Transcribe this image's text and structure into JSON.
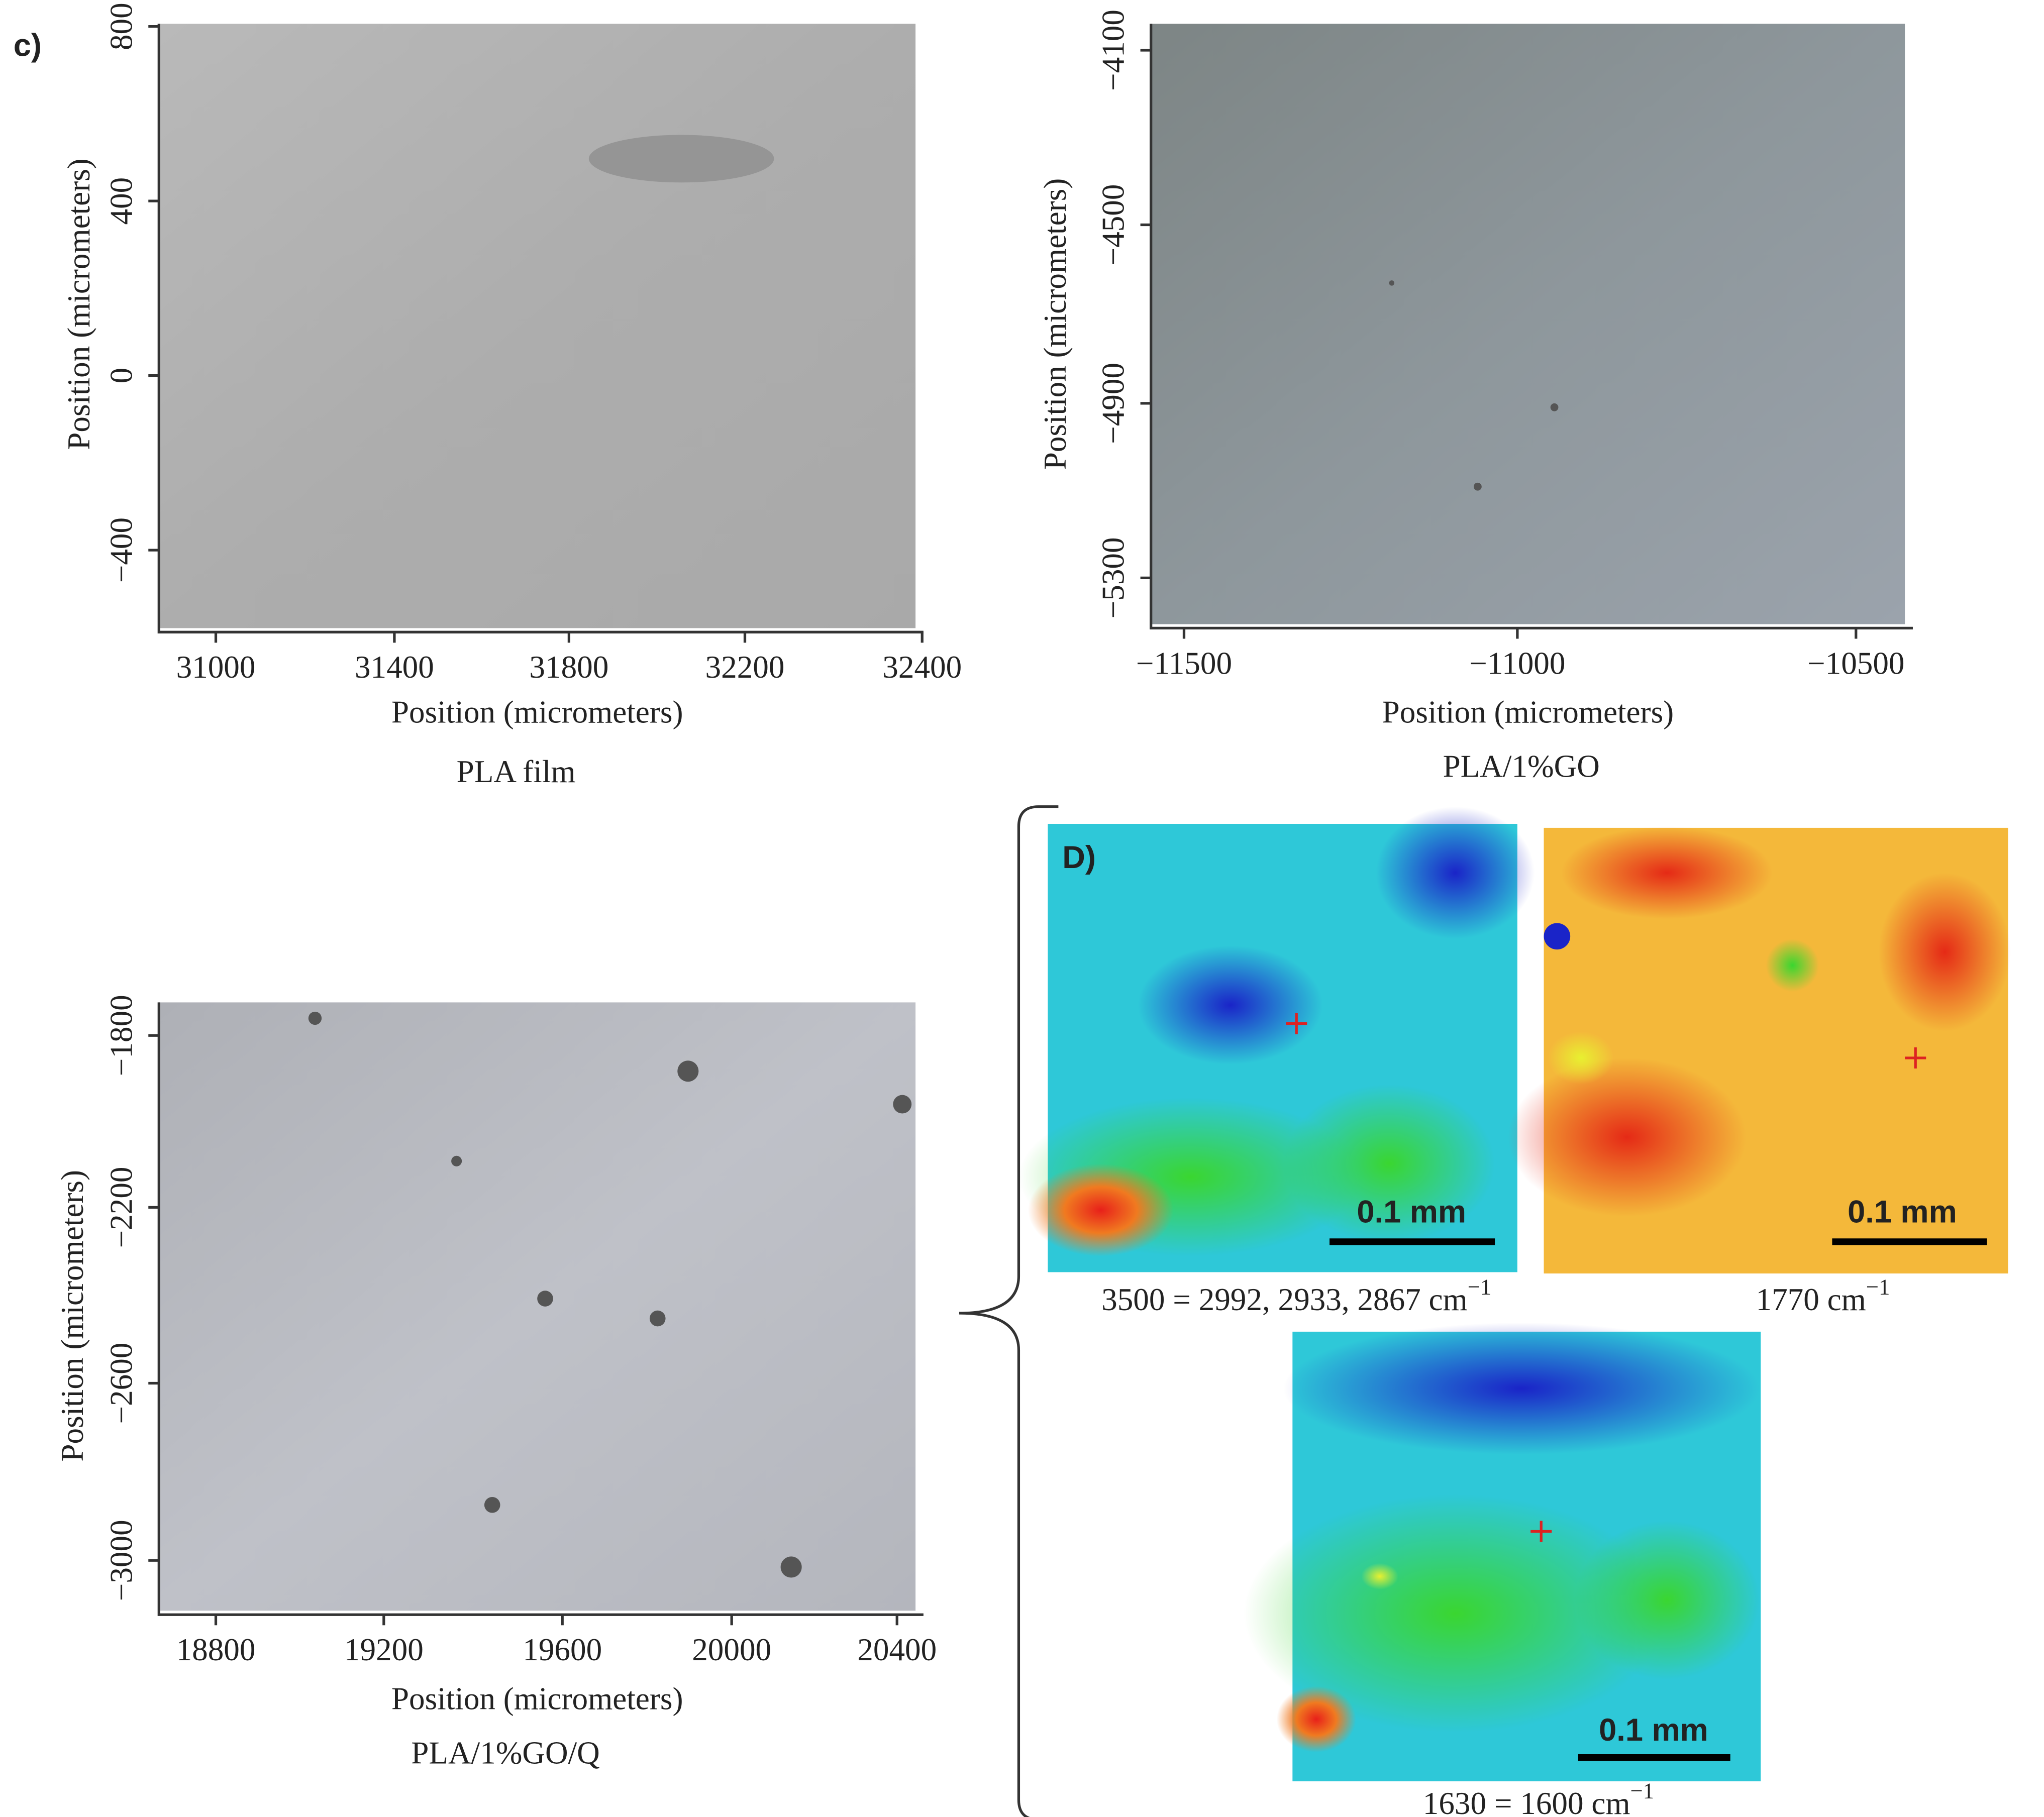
{
  "panel_c": {
    "label": "c)",
    "plots": [
      {
        "caption": "PLA film",
        "xlabel": "Position (micrometers)",
        "ylabel": "Position (micrometers)",
        "xticks": [
          "31000",
          "31400",
          "31800",
          "32200",
          "32400"
        ],
        "yticks": [
          "800",
          "400",
          "0",
          "−400"
        ]
      },
      {
        "caption": "PLA/1%GO",
        "xlabel": "Position (micrometers)",
        "ylabel": "Position (micrometers)",
        "xticks": [
          "−11500",
          "−11000",
          "−10500"
        ],
        "yticks": [
          "−4100",
          "−4500",
          "−4900",
          "−5300"
        ]
      },
      {
        "caption": "PLA/1%GO/Q",
        "xlabel": "Position (micrometers)",
        "ylabel": "Position (micrometers)",
        "xticks": [
          "18800",
          "19200",
          "19600",
          "20000",
          "20400"
        ],
        "yticks": [
          "−1800",
          "−2200",
          "−2600",
          "−3000"
        ]
      }
    ]
  },
  "panel_d": {
    "label": "D)",
    "maps": [
      {
        "scale_bar": "0.1 mm",
        "caption": {
          "text": "3500 = 2992, 2933, 2867 cm",
          "superscript": "−1"
        }
      },
      {
        "scale_bar": "0.1 mm",
        "caption": {
          "text": "1770 cm",
          "superscript": "−1"
        }
      },
      {
        "scale_bar": "0.1 mm",
        "caption": {
          "text": "1630 = 1600 cm",
          "superscript": "−1"
        }
      }
    ]
  }
}
